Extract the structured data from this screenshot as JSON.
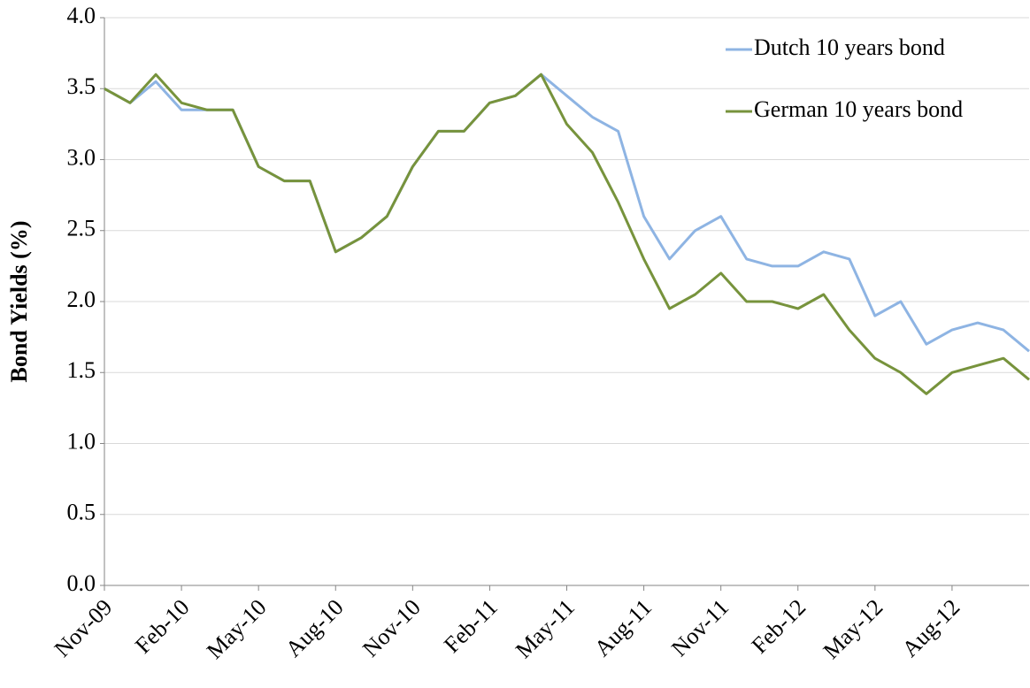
{
  "chart_data": {
    "type": "line",
    "y_label": "Bond Yields (%)",
    "categories": [
      "Nov-09",
      null,
      null,
      "Feb-10",
      null,
      null,
      "May-10",
      null,
      null,
      "Aug-10",
      null,
      null,
      "Nov-10",
      null,
      null,
      "Feb-11",
      null,
      null,
      "May-11",
      null,
      null,
      "Aug-11",
      null,
      null,
      "Nov-11",
      null,
      null,
      "Feb-12",
      null,
      null,
      "May-12",
      null,
      null,
      "Aug-12",
      null,
      null,
      null
    ],
    "series": [
      {
        "name": "Dutch 10 years bond",
        "color": "#8eb4e3",
        "values": [
          3.5,
          3.4,
          3.55,
          3.35,
          3.35,
          3.35,
          2.95,
          2.85,
          2.85,
          2.35,
          2.45,
          2.6,
          2.95,
          3.2,
          3.2,
          3.4,
          3.45,
          3.6,
          3.45,
          3.3,
          3.2,
          2.6,
          2.3,
          2.5,
          2.6,
          2.3,
          2.25,
          2.25,
          2.35,
          2.3,
          1.9,
          2.0,
          1.7,
          1.8,
          1.85,
          1.8,
          1.65
        ]
      },
      {
        "name": "German 10 years bond",
        "color": "#77933c",
        "values": [
          3.5,
          3.4,
          3.6,
          3.4,
          3.35,
          3.35,
          2.95,
          2.85,
          2.85,
          2.35,
          2.45,
          2.6,
          2.95,
          3.2,
          3.2,
          3.4,
          3.45,
          3.6,
          3.25,
          3.05,
          2.7,
          2.3,
          1.95,
          2.05,
          2.2,
          2.0,
          2.0,
          1.95,
          2.05,
          1.8,
          1.6,
          1.5,
          1.35,
          1.5,
          1.55,
          1.6,
          1.45
        ]
      }
    ],
    "ylim": [
      0,
      4
    ],
    "yticks": [
      {
        "value": 0,
        "label": "0.0"
      },
      {
        "value": 0.5,
        "label": "0.5"
      },
      {
        "value": 1,
        "label": "1.0"
      },
      {
        "value": 1.5,
        "label": "1.5"
      },
      {
        "value": 2,
        "label": "2.0"
      },
      {
        "value": 2.5,
        "label": "2.5"
      },
      {
        "value": 3,
        "label": "3.0"
      },
      {
        "value": 3.5,
        "label": "3.5"
      },
      {
        "value": 4,
        "label": "4.0"
      }
    ],
    "grid": true,
    "legend": "top-right"
  }
}
